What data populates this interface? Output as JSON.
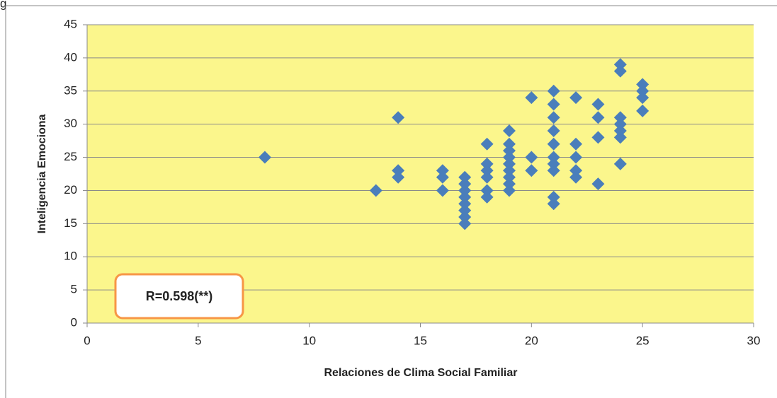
{
  "header_text": "g",
  "chart_data": {
    "type": "scatter",
    "xlabel": "Relaciones de Clima Social Familiar",
    "ylabel": "Inteligencia Emociona",
    "annotation": "R=0.598(**)",
    "xlim": [
      0,
      30
    ],
    "xticks": [
      0,
      5,
      10,
      15,
      20,
      25,
      30
    ],
    "ylim": [
      0,
      45
    ],
    "yticks": [
      0,
      5,
      10,
      15,
      20,
      25,
      30,
      35,
      40,
      45
    ],
    "grid": true,
    "background": "#fbf68c",
    "series": [
      {
        "color": "#4a7ebb",
        "x": [
          8,
          13,
          14,
          14,
          14,
          16,
          16,
          16,
          17,
          17,
          17,
          17,
          17,
          17,
          17,
          17,
          18,
          18,
          18,
          18,
          18,
          18,
          19,
          19,
          19,
          19,
          19,
          19,
          19,
          19,
          19,
          20,
          20,
          20,
          21,
          21,
          21,
          21,
          21,
          21,
          21,
          21,
          21,
          21,
          22,
          22,
          22,
          22,
          22,
          23,
          23,
          23,
          23,
          24,
          24,
          24,
          24,
          24,
          24,
          24,
          25,
          25,
          25,
          25
        ],
        "y": [
          25,
          20,
          31,
          23,
          22,
          23,
          22,
          20,
          22,
          21,
          20,
          19,
          18,
          17,
          16,
          15,
          27,
          24,
          23,
          22,
          20,
          19,
          29,
          27,
          26,
          25,
          24,
          23,
          22,
          21,
          20,
          34,
          25,
          23,
          35,
          33,
          31,
          29,
          27,
          25,
          24,
          23,
          19,
          18,
          34,
          27,
          25,
          23,
          22,
          33,
          31,
          28,
          21,
          39,
          38,
          31,
          30,
          29,
          28,
          24,
          36,
          35,
          34,
          32
        ]
      }
    ]
  }
}
